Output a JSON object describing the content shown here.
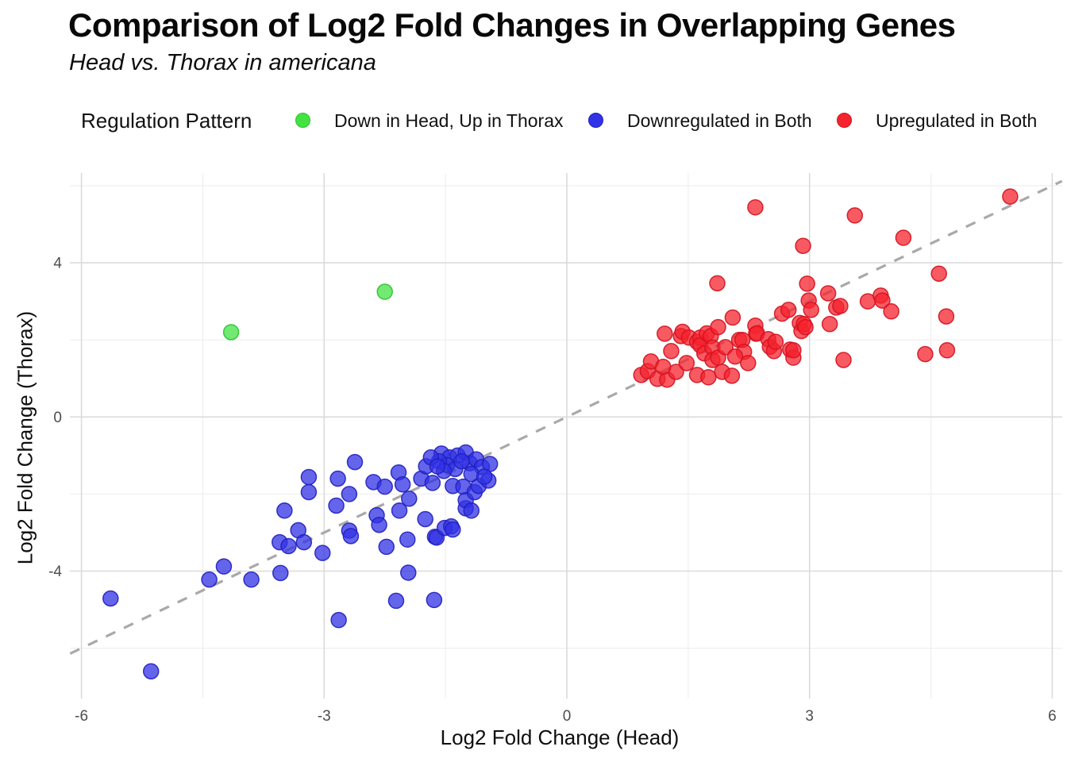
{
  "header": {
    "title": "Comparison of Log2 Fold Changes in Overlapping Genes",
    "subtitle": "Head vs. Thorax in americana"
  },
  "legend": {
    "title": "Regulation Pattern",
    "items": [
      {
        "label": "Down in Head, Up in Thorax",
        "color": "#43E243",
        "stroke": "#2DC12D"
      },
      {
        "label": "Downregulated in Both",
        "color": "#3232E6",
        "stroke": "#2020BE"
      },
      {
        "label": "Upregulated in Both",
        "color": "#F5232D",
        "stroke": "#D31220"
      }
    ]
  },
  "axes": {
    "x_label": "Log2 Fold Change (Head)",
    "y_label": "Log2 Fold Change (Thorax)"
  },
  "chart_data": {
    "type": "scatter",
    "title": "Comparison of Log2 Fold Changes in Overlapping Genes",
    "subtitle": "Head vs. Thorax in americana",
    "xlabel": "Log2 Fold Change (Head)",
    "ylabel": "Log2 Fold Change (Thorax)",
    "xlim": [
      -6.15,
      6.15
    ],
    "ylim": [
      -7.3,
      6.35
    ],
    "x_major_ticks": [
      -6,
      -3,
      0,
      3,
      6
    ],
    "x_minor_ticks": [
      -4.5,
      -1.5,
      1.5,
      4.5
    ],
    "y_major_ticks": [
      -4,
      0,
      4
    ],
    "y_minor_ticks": [
      -6,
      -2,
      2,
      6
    ],
    "grid": true,
    "legend_position": "top",
    "legend_title": "Regulation Pattern",
    "identity_line": {
      "style": "dashed",
      "color": "#A4A4A4",
      "from": [
        -6.14,
        -6.14
      ],
      "to": [
        6.12,
        6.12
      ]
    },
    "tick_label_color": "#4D4D4D",
    "series": [
      {
        "name": "Down in Head, Up in Thorax",
        "color": "#43E243",
        "stroke": "#2DC12D",
        "points": [
          [
            -4.15,
            2.2
          ],
          [
            -2.25,
            3.25
          ]
        ]
      },
      {
        "name": "Downregulated in Both",
        "color": "#3232E6",
        "stroke": "#2020BE",
        "points": [
          [
            -5.64,
            -4.71
          ],
          [
            -5.14,
            -6.6
          ],
          [
            -4.42,
            -4.22
          ],
          [
            -4.24,
            -3.88
          ],
          [
            -3.9,
            -4.22
          ],
          [
            -3.54,
            -4.05
          ],
          [
            -3.55,
            -3.25
          ],
          [
            -3.49,
            -2.43
          ],
          [
            -3.44,
            -3.35
          ],
          [
            -3.32,
            -2.94
          ],
          [
            -3.25,
            -3.25
          ],
          [
            -3.19,
            -1.56
          ],
          [
            -3.19,
            -1.95
          ],
          [
            -3.02,
            -3.53
          ],
          [
            -2.85,
            -2.3
          ],
          [
            -2.83,
            -1.6
          ],
          [
            -2.82,
            -5.27
          ],
          [
            -2.69,
            -2.0
          ],
          [
            -2.69,
            -2.95
          ],
          [
            -2.67,
            -3.09
          ],
          [
            -2.62,
            -1.17
          ],
          [
            -2.39,
            -1.69
          ],
          [
            -2.35,
            -2.55
          ],
          [
            -2.32,
            -2.8
          ],
          [
            -2.25,
            -1.81
          ],
          [
            -2.23,
            -3.37
          ],
          [
            -2.11,
            -4.77
          ],
          [
            -2.08,
            -1.44
          ],
          [
            -2.07,
            -2.43
          ],
          [
            -2.03,
            -1.75
          ],
          [
            -1.97,
            -3.18
          ],
          [
            -1.96,
            -4.04
          ],
          [
            -1.95,
            -2.12
          ],
          [
            -1.8,
            -1.6
          ],
          [
            -1.75,
            -2.65
          ],
          [
            -1.74,
            -1.28
          ],
          [
            -1.66,
            -1.71
          ],
          [
            -1.64,
            -4.75
          ],
          [
            -1.63,
            -3.11
          ],
          [
            -1.61,
            -3.13
          ],
          [
            -1.51,
            -2.88
          ],
          [
            -1.43,
            -2.84
          ],
          [
            -1.41,
            -2.92
          ],
          [
            -1.41,
            -1.79
          ],
          [
            -1.28,
            -1.81
          ],
          [
            -1.25,
            -2.37
          ],
          [
            -1.25,
            -2.16
          ],
          [
            -1.18,
            -2.43
          ],
          [
            -1.14,
            -1.95
          ],
          [
            -1.09,
            -1.79
          ],
          [
            -0.97,
            -1.65
          ],
          [
            -1.55,
            -0.95
          ],
          [
            -1.45,
            -1.05
          ],
          [
            -1.35,
            -1.0
          ],
          [
            -1.25,
            -0.92
          ],
          [
            -1.48,
            -1.25
          ],
          [
            -1.38,
            -1.35
          ],
          [
            -1.2,
            -1.2
          ],
          [
            -1.12,
            -1.1
          ],
          [
            -1.05,
            -1.3
          ],
          [
            -1.3,
            -1.15
          ],
          [
            -1.58,
            -1.15
          ],
          [
            -1.68,
            -1.05
          ],
          [
            -1.18,
            -1.48
          ],
          [
            -0.95,
            -1.22
          ],
          [
            -1.02,
            -1.55
          ],
          [
            -1.52,
            -1.4
          ],
          [
            -1.6,
            -1.28
          ]
        ]
      },
      {
        "name": "Upregulated in Both",
        "color": "#F5232D",
        "stroke": "#D31220",
        "points": [
          [
            0.92,
            1.09
          ],
          [
            1.0,
            1.19
          ],
          [
            1.04,
            1.44
          ],
          [
            1.12,
            0.99
          ],
          [
            1.24,
            0.97
          ],
          [
            1.21,
            2.16
          ],
          [
            1.29,
            1.71
          ],
          [
            1.35,
            1.17
          ],
          [
            1.41,
            2.1
          ],
          [
            1.43,
            2.21
          ],
          [
            1.51,
            2.06
          ],
          [
            1.61,
            1.95
          ],
          [
            1.61,
            1.09
          ],
          [
            1.65,
            2.06
          ],
          [
            1.65,
            1.86
          ],
          [
            1.7,
            1.65
          ],
          [
            1.73,
            2.17
          ],
          [
            1.75,
            1.03
          ],
          [
            1.78,
            2.1
          ],
          [
            1.8,
            1.8
          ],
          [
            1.8,
            1.48
          ],
          [
            1.87,
            2.33
          ],
          [
            1.87,
            1.54
          ],
          [
            1.86,
            3.47
          ],
          [
            1.92,
            1.17
          ],
          [
            1.96,
            1.81
          ],
          [
            2.04,
            1.07
          ],
          [
            2.05,
            2.58
          ],
          [
            2.13,
            2.0
          ],
          [
            2.17,
            2.0
          ],
          [
            2.19,
            1.69
          ],
          [
            2.24,
            1.4
          ],
          [
            2.33,
            2.37
          ],
          [
            2.34,
            2.16
          ],
          [
            2.35,
            2.17
          ],
          [
            2.49,
            2.02
          ],
          [
            2.51,
            1.82
          ],
          [
            2.56,
            1.71
          ],
          [
            2.58,
            1.95
          ],
          [
            2.66,
            2.68
          ],
          [
            2.74,
            2.78
          ],
          [
            2.76,
            1.75
          ],
          [
            2.8,
            1.54
          ],
          [
            2.8,
            1.73
          ],
          [
            2.88,
            2.44
          ],
          [
            2.9,
            2.23
          ],
          [
            2.92,
            4.44
          ],
          [
            2.93,
            2.41
          ],
          [
            2.95,
            2.33
          ],
          [
            2.97,
            3.46
          ],
          [
            2.99,
            3.02
          ],
          [
            3.02,
            2.78
          ],
          [
            3.23,
            3.21
          ],
          [
            3.25,
            2.41
          ],
          [
            3.33,
            2.84
          ],
          [
            3.38,
            2.88
          ],
          [
            3.42,
            1.48
          ],
          [
            3.56,
            5.23
          ],
          [
            3.72,
            3.0
          ],
          [
            3.88,
            3.15
          ],
          [
            3.9,
            3.02
          ],
          [
            4.01,
            2.74
          ],
          [
            4.16,
            4.65
          ],
          [
            4.43,
            1.63
          ],
          [
            4.6,
            3.72
          ],
          [
            4.69,
            2.61
          ],
          [
            4.7,
            1.73
          ],
          [
            5.48,
            5.72
          ],
          [
            2.33,
            5.44
          ],
          [
            1.19,
            1.3
          ],
          [
            1.48,
            1.4
          ],
          [
            2.08,
            1.57
          ]
        ]
      }
    ]
  }
}
